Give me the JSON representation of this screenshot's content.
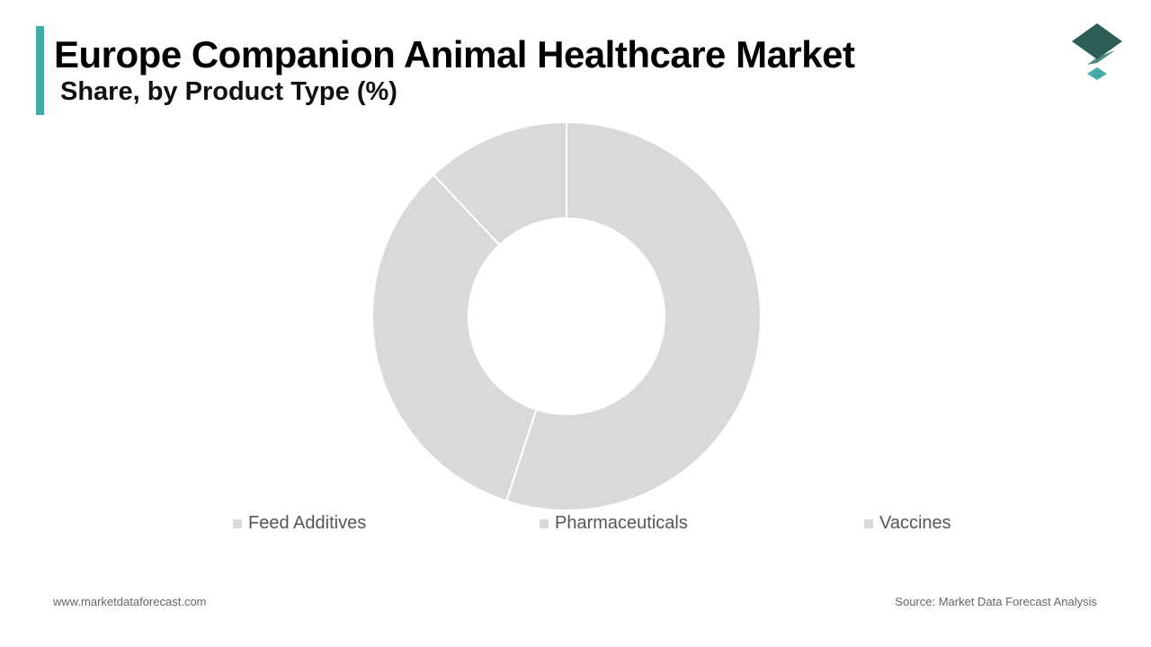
{
  "title": "Europe Companion Animal Healthcare Market",
  "subtitle": "Share, by Product Type (%)",
  "colors": {
    "accent": "#44aaa8",
    "slice": "#d9d9d9",
    "slice_border": "#ffffff",
    "logo_dark": "#2e5c57",
    "logo_mid": "#4e8a84",
    "logo_light": "#44aaa8"
  },
  "logo_icon": "stacked-layers-icon",
  "chart_data": {
    "type": "pie",
    "donut": true,
    "title": "Share, by Product Type (%)",
    "categories": [
      "Pharmaceuticals",
      "Feed Additives",
      "Vaccines"
    ],
    "values": [
      55,
      33,
      12
    ],
    "unit": "%",
    "legend": [
      "Feed Additives",
      "Pharmaceuticals",
      "Vaccines"
    ],
    "legend_position": "bottom"
  },
  "footer": {
    "website": "www.marketdataforecast.com",
    "source": "Source: Market Data Forecast Analysis"
  }
}
